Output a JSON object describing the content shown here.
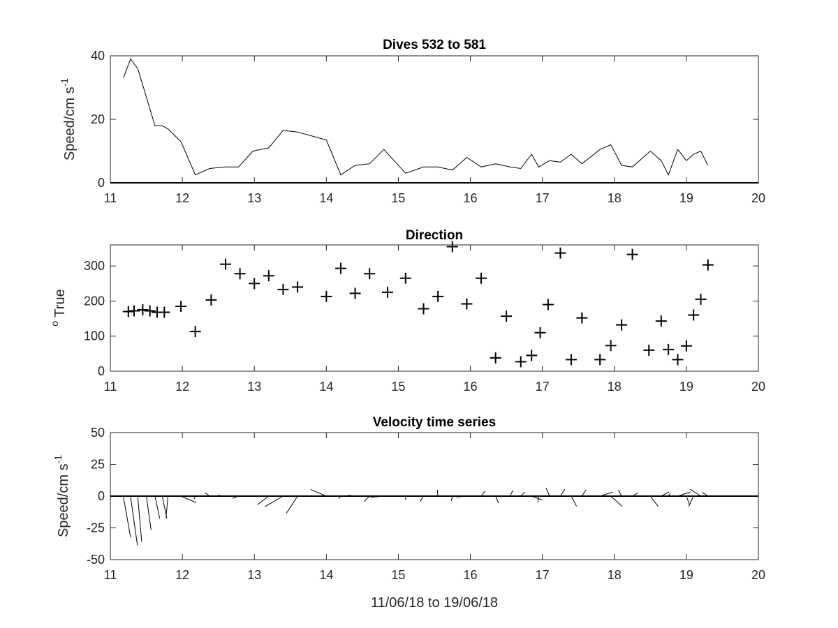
{
  "chart_data": [
    {
      "type": "line",
      "title": "Dives 532 to 581",
      "ylabel_main": "Speed/cm s",
      "ylabel_sup": "-1",
      "xlim": [
        11,
        20
      ],
      "ylim": [
        0,
        40
      ],
      "xticks": [
        "11",
        "12",
        "13",
        "14",
        "15",
        "16",
        "17",
        "18",
        "19",
        "20"
      ],
      "yticks": [
        "0",
        "20",
        "40"
      ],
      "x": [
        11.18,
        11.28,
        11.38,
        11.5,
        11.62,
        11.72,
        11.8,
        11.98,
        12.18,
        12.38,
        12.58,
        12.78,
        12.98,
        13.2,
        13.4,
        13.6,
        14.0,
        14.2,
        14.4,
        14.6,
        14.8,
        15.1,
        15.35,
        15.55,
        15.75,
        15.95,
        16.15,
        16.35,
        16.55,
        16.7,
        16.85,
        16.95,
        17.1,
        17.25,
        17.4,
        17.55,
        17.8,
        17.95,
        18.1,
        18.25,
        18.5,
        18.65,
        18.75,
        18.88,
        19.0,
        19.1,
        19.2,
        19.3
      ],
      "y": [
        33,
        39,
        36,
        27,
        18,
        18,
        17,
        13,
        2.5,
        4.5,
        5,
        5,
        10,
        11,
        16.5,
        16,
        13.5,
        2.5,
        5.5,
        6,
        10.5,
        3,
        5,
        5,
        4,
        8,
        5,
        6,
        5,
        4.5,
        9,
        5,
        7,
        6.5,
        9,
        6,
        10.5,
        12,
        5.5,
        5,
        10,
        7,
        2.5,
        10.5,
        7,
        9,
        10,
        5.5
      ]
    },
    {
      "type": "scatter",
      "title": "Direction",
      "ylabel_sup": "o",
      "ylabel_main": " True",
      "xlim": [
        11,
        20
      ],
      "ylim": [
        0,
        360
      ],
      "xticks": [
        "11",
        "12",
        "13",
        "14",
        "15",
        "16",
        "17",
        "18",
        "19",
        "20"
      ],
      "yticks": [
        "0",
        "100",
        "200",
        "300"
      ],
      "x": [
        11.25,
        11.33,
        11.45,
        11.55,
        11.65,
        11.75,
        11.98,
        12.18,
        12.4,
        12.6,
        12.8,
        13.0,
        13.2,
        13.4,
        13.6,
        14.0,
        14.2,
        14.4,
        14.6,
        14.85,
        15.1,
        15.35,
        15.55,
        15.75,
        15.95,
        16.15,
        16.35,
        16.5,
        16.7,
        16.85,
        16.97,
        17.08,
        17.25,
        17.4,
        17.55,
        17.8,
        17.95,
        18.1,
        18.25,
        18.48,
        18.65,
        18.75,
        18.88,
        19.0,
        19.1,
        19.2,
        19.3
      ],
      "y": [
        170,
        172,
        175,
        172,
        168,
        168,
        185,
        113,
        203,
        305,
        278,
        250,
        272,
        233,
        240,
        213,
        293,
        222,
        278,
        225,
        265,
        178,
        213,
        355,
        192,
        265,
        38,
        157,
        27,
        45,
        110,
        190,
        337,
        33,
        152,
        33,
        73,
        132,
        333,
        60,
        143,
        62,
        33,
        72,
        160,
        205,
        303
      ]
    },
    {
      "type": "quiver",
      "title": "Velocity time series",
      "ylabel_main": "Speed/cm s",
      "ylabel_sup": "-1",
      "xlabel": "11/06/18 to 19/06/18",
      "xlim": [
        11,
        20
      ],
      "ylim": [
        -50,
        50
      ],
      "xticks": [
        "11",
        "12",
        "13",
        "14",
        "15",
        "16",
        "17",
        "18",
        "19",
        "20"
      ],
      "yticks": [
        "50",
        "25",
        "0",
        "-25",
        "-50"
      ],
      "x": [
        11.18,
        11.28,
        11.38,
        11.5,
        11.62,
        11.72,
        11.8,
        11.98,
        12.18,
        12.38,
        12.58,
        12.78,
        12.98,
        13.2,
        13.4,
        13.6,
        14.0,
        14.2,
        14.4,
        14.6,
        14.8,
        15.1,
        15.35,
        15.55,
        15.75,
        15.95,
        16.15,
        16.35,
        16.55,
        16.7,
        16.85,
        16.95,
        17.1,
        17.25,
        17.4,
        17.55,
        17.8,
        17.95,
        18.1,
        18.25,
        18.5,
        18.65,
        18.75,
        18.88,
        19.0,
        19.1,
        19.2,
        19.3
      ],
      "speed": [
        33,
        39,
        36,
        27,
        18,
        18,
        17,
        13,
        2.5,
        4.5,
        5,
        5,
        10,
        11,
        16.5,
        16,
        13.5,
        2.5,
        5.5,
        6,
        10.5,
        3,
        5,
        5,
        4,
        8,
        5,
        6,
        5,
        4.5,
        9,
        5,
        7,
        6.5,
        9,
        6,
        10.5,
        12,
        5.5,
        5,
        10,
        7,
        2.5,
        10.5,
        7,
        9,
        10,
        5.5
      ],
      "direction": [
        170,
        172,
        175,
        172,
        168,
        168,
        185,
        113,
        203,
        305,
        278,
        250,
        272,
        233,
        240,
        213,
        293,
        222,
        278,
        225,
        265,
        178,
        213,
        355,
        192,
        265,
        38,
        157,
        27,
        45,
        110,
        190,
        337,
        33,
        152,
        33,
        73,
        132,
        333,
        60,
        143,
        62,
        33,
        72,
        160,
        205,
        303,
        303
      ]
    }
  ]
}
